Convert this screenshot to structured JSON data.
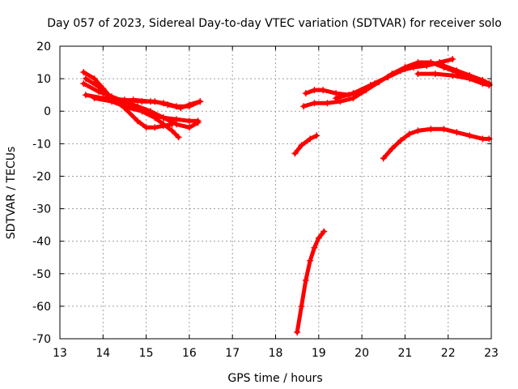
{
  "chart_data": {
    "type": "scatter",
    "title": "Day 057 of 2023, Sidereal Day-to-day VTEC variation (SDTVAR) for receiver solo",
    "xlabel": "GPS time / hours",
    "ylabel": "SDTVAR / TECUs",
    "xlim": [
      13,
      23
    ],
    "ylim": [
      -70,
      20
    ],
    "xticks": [
      13,
      14,
      15,
      16,
      17,
      18,
      19,
      20,
      21,
      22,
      23
    ],
    "yticks": [
      -70,
      -60,
      -50,
      -40,
      -30,
      -20,
      -10,
      0,
      10,
      20
    ],
    "grid": true,
    "color": "#ff0000",
    "marker": "plus",
    "series": [
      {
        "name": "s1",
        "x": [
          13.55,
          13.8,
          14.0,
          14.2,
          14.5,
          14.8,
          15.1,
          15.4,
          15.7,
          16.0,
          16.2
        ],
        "y": [
          12,
          10,
          7,
          4,
          2,
          1,
          -1,
          -2,
          -2.5,
          -3,
          -3
        ]
      },
      {
        "name": "s2",
        "x": [
          13.6,
          13.9,
          14.2,
          14.5,
          14.8,
          15.0,
          15.2,
          15.4,
          15.6
        ],
        "y": [
          10,
          7.5,
          4,
          1,
          -3,
          -5,
          -5,
          -4.5,
          -4
        ]
      },
      {
        "name": "s3",
        "x": [
          13.55,
          13.9,
          14.2,
          14.5,
          14.8,
          15.1,
          15.4,
          15.7,
          16.0,
          16.2
        ],
        "y": [
          8.5,
          6,
          4.5,
          3,
          1.5,
          0,
          -2,
          -4,
          -5,
          -3.5
        ]
      },
      {
        "name": "s4",
        "x": [
          13.6,
          14.0,
          14.5,
          14.9,
          15.2,
          15.5,
          15.8,
          16.0,
          16.25
        ],
        "y": [
          5,
          4,
          3.5,
          3,
          3,
          2,
          1,
          2,
          3
        ]
      },
      {
        "name": "s5",
        "x": [
          13.8,
          14.2,
          14.6,
          14.9,
          15.2,
          15.4,
          15.6,
          15.75
        ],
        "y": [
          4,
          3,
          1,
          0,
          -2,
          -4,
          -6,
          -8
        ]
      },
      {
        "name": "s6",
        "x": [
          14.3,
          14.7,
          15.1,
          15.4,
          15.7,
          16.0,
          16.25
        ],
        "y": [
          3,
          3.5,
          3,
          2.5,
          1.5,
          1.5,
          3
        ]
      },
      {
        "name": "s7",
        "x": [
          18.45,
          18.6,
          18.8,
          18.95
        ],
        "y": [
          -13,
          -10.5,
          -8.5,
          -7.5
        ]
      },
      {
        "name": "s8",
        "x": [
          18.5,
          18.6,
          18.7,
          18.8,
          18.9,
          19.0,
          19.12
        ],
        "y": [
          -68,
          -60,
          -52,
          -46,
          -42,
          -39,
          -37
        ]
      },
      {
        "name": "s9",
        "x": [
          18.7,
          18.9,
          19.1,
          19.4,
          19.7,
          20.0,
          20.3,
          20.6,
          20.9,
          21.2,
          21.5,
          21.8,
          22.1
        ],
        "y": [
          5.5,
          6.5,
          6.5,
          5.5,
          5,
          6.5,
          8.5,
          10.5,
          12.5,
          13.5,
          14,
          15,
          16
        ]
      },
      {
        "name": "s10",
        "x": [
          18.65,
          18.9,
          19.2,
          19.5,
          19.8,
          20.1,
          20.4,
          20.7,
          21.0,
          21.3,
          21.6,
          21.9,
          22.2,
          22.5,
          22.8,
          22.95
        ],
        "y": [
          1.5,
          2.5,
          2.5,
          3,
          4,
          6.5,
          9,
          11.5,
          13.5,
          15,
          15,
          14,
          12.5,
          11,
          9.5,
          8
        ]
      },
      {
        "name": "s11",
        "x": [
          19.4,
          19.8,
          20.2,
          20.6,
          21.0,
          21.3,
          21.6,
          21.9,
          22.2,
          22.5,
          22.8,
          22.95
        ],
        "y": [
          4,
          5.5,
          8,
          10.5,
          13,
          14.5,
          15,
          13.5,
          12,
          10.5,
          9.5,
          8.5
        ]
      },
      {
        "name": "s12",
        "x": [
          21.3,
          21.7,
          22.1,
          22.5,
          22.8,
          22.95
        ],
        "y": [
          11.5,
          11.5,
          11,
          10,
          8.5,
          8
        ]
      },
      {
        "name": "s13",
        "x": [
          20.5,
          20.7,
          20.9,
          21.1,
          21.3,
          21.6,
          21.9,
          22.2,
          22.5,
          22.8,
          22.95
        ],
        "y": [
          -14.5,
          -11.5,
          -9,
          -7,
          -6,
          -5.5,
          -5.5,
          -6.5,
          -7.5,
          -8.5,
          -8.5
        ]
      }
    ]
  }
}
